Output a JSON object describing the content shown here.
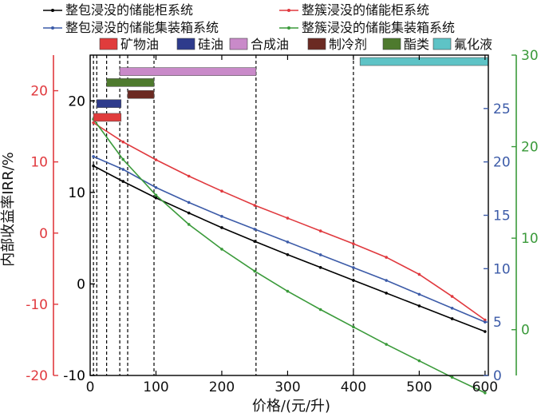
{
  "chart_data": {
    "type": "line",
    "xlabel": "价格/(元/升)",
    "ylabel": "内部收益率IRR/%",
    "xlim": [
      0,
      605
    ],
    "x_ticks": [
      0,
      100,
      200,
      300,
      400,
      500,
      600
    ],
    "axes": [
      {
        "id": "black",
        "position": "left-inner",
        "color": "#000000",
        "ylim": [
          -10,
          25
        ],
        "ticks": [
          -10,
          0,
          10,
          20
        ]
      },
      {
        "id": "red",
        "position": "left-outer",
        "color": "#e0393e",
        "ylim": [
          -20,
          25
        ],
        "ticks": [
          -20,
          -10,
          0,
          10,
          20
        ]
      },
      {
        "id": "blue",
        "position": "right-inner",
        "color": "#3c5ba8",
        "ylim": [
          0,
          30
        ],
        "ticks": [
          0,
          5,
          10,
          15,
          20,
          25
        ]
      },
      {
        "id": "green",
        "position": "right-outer",
        "color": "#3a9a3a",
        "ylim": [
          -5,
          30
        ],
        "ticks": [
          0,
          10,
          20,
          30
        ]
      }
    ],
    "series": [
      {
        "name": "整包浸没的储能柜系统",
        "axis": "black",
        "color": "#000000",
        "x": [
          5,
          50,
          100,
          150,
          200,
          250,
          300,
          350,
          400,
          450,
          500,
          550,
          600
        ],
        "y": [
          12.9,
          11.2,
          9.4,
          7.75,
          6.15,
          4.65,
          3.2,
          1.8,
          0.4,
          -1.0,
          -2.4,
          -3.8,
          -5.2
        ]
      },
      {
        "name": "整簇浸没的储能柜系统",
        "axis": "red",
        "color": "#e0393e",
        "x": [
          5,
          50,
          100,
          150,
          200,
          250,
          300,
          350,
          400,
          450,
          500,
          550,
          600
        ],
        "y": [
          15.5,
          12.8,
          10.3,
          8.0,
          5.9,
          3.9,
          2.1,
          0.3,
          -1.5,
          -3.4,
          -5.8,
          -8.9,
          -12.2
        ]
      },
      {
        "name": "整包浸没的储能集装箱系统",
        "axis": "blue",
        "color": "#3c5ba8",
        "x": [
          5,
          50,
          100,
          150,
          200,
          250,
          300,
          350,
          400,
          450,
          500,
          550,
          600
        ],
        "y": [
          20.5,
          19.3,
          17.6,
          16.2,
          14.9,
          13.7,
          12.5,
          11.3,
          10.1,
          8.9,
          7.6,
          6.3,
          5.0
        ]
      },
      {
        "name": "整簇浸没的储能集装箱系统",
        "axis": "green",
        "color": "#3a9a3a",
        "x": [
          5,
          50,
          100,
          150,
          200,
          250,
          300,
          350,
          400,
          450,
          500,
          550,
          600
        ],
        "y": [
          23.0,
          18.6,
          14.7,
          11.5,
          8.8,
          6.4,
          4.2,
          2.2,
          0.3,
          -1.6,
          -3.4,
          -5.2,
          -6.9
        ]
      }
    ],
    "price_ranges": [
      {
        "name": "矿物油",
        "color": "#e03c3c",
        "start": 5,
        "end": 47,
        "level": 18.2
      },
      {
        "name": "硅油",
        "color": "#2e3b8c",
        "start": 10,
        "end": 47,
        "level": 19.7
      },
      {
        "name": "合成油",
        "color": "#c98ac9",
        "start": 45,
        "end": 252,
        "level": 23.2
      },
      {
        "name": "制冷剂",
        "color": "#6b2a22",
        "start": 57,
        "end": 97,
        "level": 20.7
      },
      {
        "name": "酯类",
        "color": "#4e7a2e",
        "start": 25,
        "end": 97,
        "level": 22.0
      },
      {
        "name": "氟化液",
        "color": "#5ec3c6",
        "start": 410,
        "end": 605,
        "level": 24.3
      }
    ],
    "vlines": [
      5,
      10,
      25,
      45,
      57,
      97,
      252,
      400
    ],
    "grid": false
  }
}
